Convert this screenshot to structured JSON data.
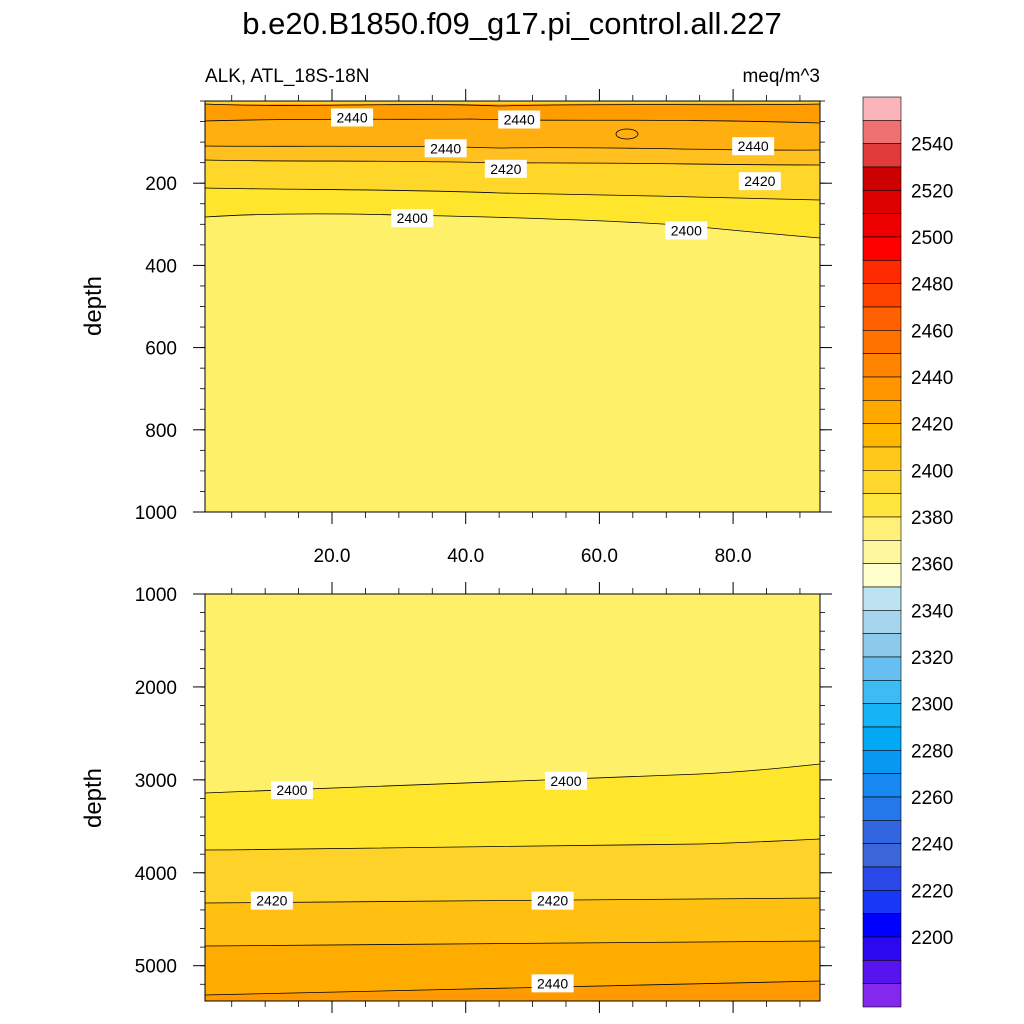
{
  "chart_data": {
    "type": "contour",
    "title": "b.e20.B1850.f09_g17.pi_control.all.227",
    "subtitle_left": "ALK, ATL_18S-18N",
    "subtitle_right": "meq/m^3",
    "panels": [
      {
        "name": "upper",
        "ylabel": "depth",
        "ylim": [
          1000,
          0
        ],
        "y_ticks": [
          200,
          400,
          600,
          800,
          1000
        ],
        "x_ticks": [
          "20.0",
          "40.0",
          "60.0",
          "80.0"
        ],
        "xlim": [
          1,
          93
        ],
        "x_tick_values": [
          20,
          40,
          60,
          80
        ],
        "contour_labels": [
          {
            "text": "2440",
            "x": 23,
            "y": 40
          },
          {
            "text": "2440",
            "x": 48,
            "y": 45
          },
          {
            "text": "2440",
            "x": 37,
            "y": 115
          },
          {
            "text": "2440",
            "x": 83,
            "y": 110
          },
          {
            "text": "2420",
            "x": 46,
            "y": 165
          },
          {
            "text": "2420",
            "x": 84,
            "y": 195
          },
          {
            "text": "2400",
            "x": 32,
            "y": 285
          },
          {
            "text": "2400",
            "x": 73,
            "y": 315
          }
        ]
      },
      {
        "name": "lower",
        "ylabel": "depth",
        "ylim": [
          5380,
          1000
        ],
        "y_ticks": [
          1000,
          2000,
          3000,
          4000,
          5000
        ],
        "xlim": [
          1,
          93
        ],
        "x_tick_values": [
          20,
          40,
          60,
          80
        ],
        "contour_labels": [
          {
            "text": "2400",
            "x": 14,
            "y": 3110
          },
          {
            "text": "2400",
            "x": 55,
            "y": 3010
          },
          {
            "text": "2420",
            "x": 11,
            "y": 4300
          },
          {
            "text": "2420",
            "x": 53,
            "y": 4300
          },
          {
            "text": "2440",
            "x": 53,
            "y": 5190
          }
        ]
      }
    ],
    "colorbar": {
      "labels": [
        "2540",
        "2520",
        "2500",
        "2480",
        "2460",
        "2440",
        "2420",
        "2400",
        "2380",
        "2360",
        "2340",
        "2320",
        "2300",
        "2280",
        "2260",
        "2240",
        "2220",
        "2200"
      ],
      "colors": [
        "#fbb4b9",
        "#ef7070",
        "#e03a3a",
        "#cc0000",
        "#dd0000",
        "#ee0000",
        "#ff0000",
        "#ff2a00",
        "#ff4400",
        "#ff6000",
        "#ff7200",
        "#ff8400",
        "#ff9600",
        "#ffa800",
        "#ffb800",
        "#ffc81a",
        "#ffd72c",
        "#ffe63f",
        "#fff07a",
        "#fff7a0",
        "#ffffcc",
        "#bde2f2",
        "#a6d6ee",
        "#8dc9ea",
        "#66bff0",
        "#3dbbf5",
        "#16b4f7",
        "#00a8f5",
        "#0898f2",
        "#1688ef",
        "#2478ea",
        "#3266e0",
        "#3c66d8",
        "#2a48e8",
        "#1838f5",
        "#0000ff",
        "#2c08f0",
        "#5814ee",
        "#8428ec"
      ]
    }
  }
}
